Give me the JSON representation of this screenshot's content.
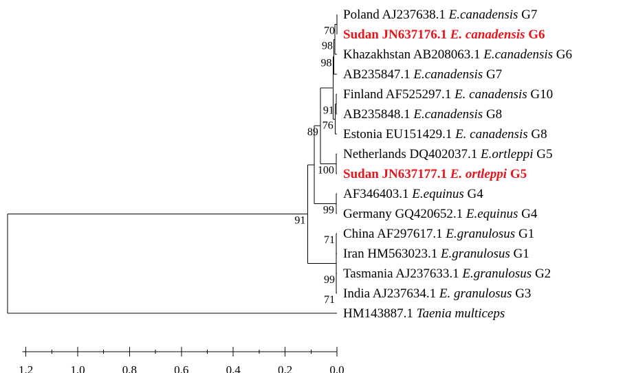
{
  "tree": {
    "colors": {
      "line": "#000000",
      "highlight": "#e8141b"
    },
    "taxa": [
      {
        "parts": [
          {
            "t": "Poland AJ237638.1 "
          },
          {
            "t": "E.canadensis",
            "i": true
          },
          {
            "t": " G7"
          }
        ],
        "highlight": false
      },
      {
        "parts": [
          {
            "t": "Sudan JN637176.1 "
          },
          {
            "t": "E. canadensis",
            "i": true
          },
          {
            "t": " G6"
          }
        ],
        "highlight": true
      },
      {
        "parts": [
          {
            "t": "Khazakhstan AB208063.1 "
          },
          {
            "t": "E.canadensis",
            "i": true
          },
          {
            "t": " G6"
          }
        ],
        "highlight": false
      },
      {
        "parts": [
          {
            "t": "AB235847.1 "
          },
          {
            "t": "E.canadensis",
            "i": true
          },
          {
            "t": " G7"
          }
        ],
        "highlight": false
      },
      {
        "parts": [
          {
            "t": "Finland AF525297.1 "
          },
          {
            "t": "E. canadensis",
            "i": true
          },
          {
            "t": " G10"
          }
        ],
        "highlight": false
      },
      {
        "parts": [
          {
            "t": "AB235848.1 "
          },
          {
            "t": "E.canadensis",
            "i": true
          },
          {
            "t": " G8"
          }
        ],
        "highlight": false
      },
      {
        "parts": [
          {
            "t": "Estonia EU151429.1 "
          },
          {
            "t": "E. canadensis",
            "i": true
          },
          {
            "t": " G8"
          }
        ],
        "highlight": false
      },
      {
        "parts": [
          {
            "t": "Netherlands DQ402037.1 "
          },
          {
            "t": "E.ortleppi",
            "i": true
          },
          {
            "t": " G5"
          }
        ],
        "highlight": false
      },
      {
        "parts": [
          {
            "t": "Sudan JN637177.1 "
          },
          {
            "t": "E. ortleppi",
            "i": true
          },
          {
            "t": " G5"
          }
        ],
        "highlight": true
      },
      {
        "parts": [
          {
            "t": "AF346403.1 "
          },
          {
            "t": "E.equinus",
            "i": true
          },
          {
            "t": " G4"
          }
        ],
        "highlight": false
      },
      {
        "parts": [
          {
            "t": "Germany GQ420652.1 "
          },
          {
            "t": "E.equinus",
            "i": true
          },
          {
            "t": " G4"
          }
        ],
        "highlight": false
      },
      {
        "parts": [
          {
            "t": "China AF297617.1 "
          },
          {
            "t": "E.granulosus",
            "i": true
          },
          {
            "t": " G1"
          }
        ],
        "highlight": false
      },
      {
        "parts": [
          {
            "t": "Iran HM563023.1 "
          },
          {
            "t": "E.granulosus",
            "i": true
          },
          {
            "t": " G1"
          }
        ],
        "highlight": false
      },
      {
        "parts": [
          {
            "t": "Tasmania AJ237633.1 "
          },
          {
            "t": "E.granulosus",
            "i": true
          },
          {
            "t": " G2"
          }
        ],
        "highlight": false
      },
      {
        "parts": [
          {
            "t": "India AJ237634.1 "
          },
          {
            "t": " E. granulosus",
            "i": true
          },
          {
            "t": " G3"
          }
        ],
        "highlight": false
      },
      {
        "parts": [
          {
            "t": "HM143887.1 "
          },
          {
            "t": "Taenia multiceps",
            "i": true
          }
        ],
        "highlight": false
      }
    ],
    "nodes": [
      {
        "id": "n_pl_su",
        "height": 0.0,
        "children": [
          "t0",
          "t1"
        ],
        "support": "70"
      },
      {
        "id": "n_pskh",
        "height": 0.008,
        "children": [
          "n_pl_su",
          "t2"
        ],
        "support": "98"
      },
      {
        "id": "n_g67",
        "height": 0.012,
        "children": [
          "n_pskh",
          "t3"
        ],
        "support": "98"
      },
      {
        "id": "n_fi_ab8",
        "height": 0.003,
        "children": [
          "t4",
          "t5"
        ],
        "support": "91"
      },
      {
        "id": "n_g810",
        "height": 0.006,
        "children": [
          "n_fi_ab8",
          "t6"
        ],
        "support": "76"
      },
      {
        "id": "n_can",
        "height": 0.015,
        "children": [
          "n_g67",
          "n_g810"
        ],
        "support": ""
      },
      {
        "id": "n_ort",
        "height": 0.003,
        "children": [
          "t7",
          "t8"
        ],
        "support": "100"
      },
      {
        "id": "n_can_ort",
        "height": 0.064,
        "children": [
          "n_can",
          "n_ort"
        ],
        "support": "89"
      },
      {
        "id": "n_equ",
        "height": 0.003,
        "children": [
          "t9",
          "t10"
        ],
        "support": "99"
      },
      {
        "id": "n_coe",
        "height": 0.088,
        "children": [
          "n_can_ort",
          "n_equ"
        ],
        "support": ""
      },
      {
        "id": "n_gran",
        "height": 0.003,
        "children": [
          "t11",
          "t12",
          "t13",
          "t14"
        ],
        "support": ""
      },
      {
        "id": "n_echino",
        "height": 0.113,
        "children": [
          "n_coe",
          "n_gran"
        ],
        "support": "91"
      },
      {
        "id": "root",
        "height": 1.27,
        "children": [
          "n_echino",
          "t15"
        ],
        "support": ""
      }
    ],
    "extra_support_labels": [
      {
        "text": "71",
        "taxon": 11
      },
      {
        "text": "99",
        "taxon": 13
      },
      {
        "text": "71",
        "taxon": 14
      }
    ],
    "axis": {
      "ticks": [
        1.2,
        1.0,
        0.8,
        0.6,
        0.4,
        0.2,
        0.0
      ],
      "tick_labels": [
        "1.2",
        "1.0",
        "0.8",
        "0.6",
        "0.4",
        "0.2",
        "0.0"
      ],
      "min": 0.0,
      "max": 1.2,
      "minor_step": 0.1,
      "reversed": true
    }
  }
}
